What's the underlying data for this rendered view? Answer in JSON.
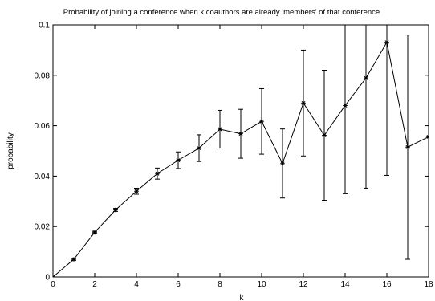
{
  "chart_data": {
    "type": "line",
    "title": "Probability of joining a conference when k coauthors are already 'members' of that conference",
    "xlabel": "k",
    "ylabel": "probability",
    "xlim": [
      0,
      18
    ],
    "ylim": [
      0,
      0.1
    ],
    "grid": false,
    "x_ticks": [
      {
        "value": 0,
        "label": "0"
      },
      {
        "value": 2,
        "label": "2"
      },
      {
        "value": 4,
        "label": "4"
      },
      {
        "value": 6,
        "label": "6"
      },
      {
        "value": 8,
        "label": "8"
      },
      {
        "value": 10,
        "label": "10"
      },
      {
        "value": 12,
        "label": "12"
      },
      {
        "value": 14,
        "label": "14"
      },
      {
        "value": 16,
        "label": "16"
      },
      {
        "value": 18,
        "label": "18"
      }
    ],
    "y_ticks": [
      {
        "value": 0,
        "label": "0"
      },
      {
        "value": 0.02,
        "label": "0.02"
      },
      {
        "value": 0.04,
        "label": "0.04"
      },
      {
        "value": 0.06,
        "label": "0.06"
      },
      {
        "value": 0.08,
        "label": "0.08"
      },
      {
        "value": 0.1,
        "label": "0.1"
      }
    ],
    "series": [
      {
        "color": "#000000",
        "marker": "star",
        "points": [
          {
            "x": 0,
            "y": 0.0,
            "err": 0.0
          },
          {
            "x": 1,
            "y": 0.007,
            "err": 0.0004
          },
          {
            "x": 2,
            "y": 0.0177,
            "err": 0.0004
          },
          {
            "x": 3,
            "y": 0.0266,
            "err": 0.0006
          },
          {
            "x": 4,
            "y": 0.034,
            "err": 0.0012
          },
          {
            "x": 5,
            "y": 0.041,
            "err": 0.0022
          },
          {
            "x": 6,
            "y": 0.0463,
            "err": 0.0033
          },
          {
            "x": 7,
            "y": 0.0511,
            "err": 0.0053
          },
          {
            "x": 8,
            "y": 0.0586,
            "err": 0.0075
          },
          {
            "x": 9,
            "y": 0.0568,
            "err": 0.0097
          },
          {
            "x": 10,
            "y": 0.0617,
            "err": 0.013
          },
          {
            "x": 11,
            "y": 0.045,
            "err": 0.0137
          },
          {
            "x": 12,
            "y": 0.069,
            "err": 0.021
          },
          {
            "x": 13,
            "y": 0.0562,
            "err": 0.0258
          },
          {
            "x": 14,
            "y": 0.068,
            "err": 0.035
          },
          {
            "x": 15,
            "y": 0.0789,
            "err": 0.0437
          },
          {
            "x": 16,
            "y": 0.0931,
            "err": 0.0528
          },
          {
            "x": 17,
            "y": 0.0515,
            "err": 0.0445
          },
          {
            "x": 18,
            "y": 0.0556,
            "err": 0.0
          }
        ]
      }
    ]
  }
}
